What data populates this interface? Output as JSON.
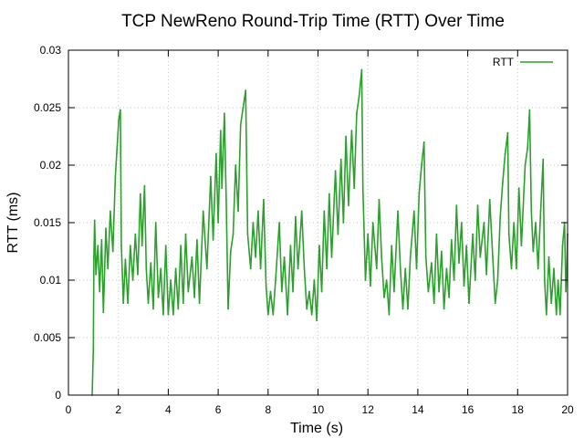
{
  "chart_data": {
    "type": "line",
    "title": "TCP NewReno Round-Trip Time (RTT) Over Time",
    "xlabel": "Time (s)",
    "ylabel": "RTT (ms)",
    "xlim": [
      0,
      20
    ],
    "ylim": [
      0,
      0.03
    ],
    "x_ticks": [
      "0",
      "2",
      "4",
      "6",
      "8",
      "10",
      "12",
      "14",
      "16",
      "18",
      "20"
    ],
    "y_ticks": [
      "0",
      "0.005",
      "0.01",
      "0.015",
      "0.02",
      "0.025",
      "0.03"
    ],
    "grid": true,
    "legend_position": "top-right",
    "series": [
      {
        "name": "RTT",
        "color": "#2ca02c",
        "points": [
          [
            0.95,
            0.0
          ],
          [
            1.0,
            0.004
          ],
          [
            1.02,
            0.012
          ],
          [
            1.05,
            0.0152
          ],
          [
            1.1,
            0.0105
          ],
          [
            1.18,
            0.013
          ],
          [
            1.25,
            0.009
          ],
          [
            1.33,
            0.0135
          ],
          [
            1.4,
            0.0072
          ],
          [
            1.5,
            0.0145
          ],
          [
            1.58,
            0.011
          ],
          [
            1.68,
            0.016
          ],
          [
            1.78,
            0.0125
          ],
          [
            1.88,
            0.019
          ],
          [
            1.95,
            0.0215
          ],
          [
            2.02,
            0.024
          ],
          [
            2.08,
            0.0248
          ],
          [
            2.12,
            0.013
          ],
          [
            2.2,
            0.008
          ],
          [
            2.28,
            0.0118
          ],
          [
            2.38,
            0.008
          ],
          [
            2.48,
            0.013
          ],
          [
            2.58,
            0.01
          ],
          [
            2.68,
            0.014
          ],
          [
            2.78,
            0.0105
          ],
          [
            2.88,
            0.0175
          ],
          [
            2.95,
            0.013
          ],
          [
            3.05,
            0.0182
          ],
          [
            3.12,
            0.011
          ],
          [
            3.2,
            0.008
          ],
          [
            3.3,
            0.0115
          ],
          [
            3.4,
            0.0075
          ],
          [
            3.5,
            0.015
          ],
          [
            3.6,
            0.0085
          ],
          [
            3.7,
            0.011
          ],
          [
            3.8,
            0.007
          ],
          [
            3.9,
            0.013
          ],
          [
            4.0,
            0.007
          ],
          [
            4.1,
            0.01
          ],
          [
            4.2,
            0.007
          ],
          [
            4.3,
            0.011
          ],
          [
            4.4,
            0.0075
          ],
          [
            4.5,
            0.013
          ],
          [
            4.6,
            0.008
          ],
          [
            4.7,
            0.014
          ],
          [
            4.8,
            0.009
          ],
          [
            4.95,
            0.012
          ],
          [
            5.05,
            0.0085
          ],
          [
            5.15,
            0.0135
          ],
          [
            5.25,
            0.008
          ],
          [
            5.4,
            0.016
          ],
          [
            5.55,
            0.011
          ],
          [
            5.7,
            0.019
          ],
          [
            5.8,
            0.0135
          ],
          [
            5.92,
            0.021
          ],
          [
            6.0,
            0.015
          ],
          [
            6.1,
            0.023
          ],
          [
            6.15,
            0.018
          ],
          [
            6.25,
            0.0245
          ],
          [
            6.32,
            0.017
          ],
          [
            6.4,
            0.0075
          ],
          [
            6.5,
            0.0125
          ],
          [
            6.6,
            0.014
          ],
          [
            6.7,
            0.02
          ],
          [
            6.8,
            0.016
          ],
          [
            6.9,
            0.0235
          ],
          [
            7.0,
            0.025
          ],
          [
            7.1,
            0.0265
          ],
          [
            7.18,
            0.014
          ],
          [
            7.3,
            0.011
          ],
          [
            7.4,
            0.015
          ],
          [
            7.5,
            0.012
          ],
          [
            7.6,
            0.016
          ],
          [
            7.7,
            0.011
          ],
          [
            7.82,
            0.017
          ],
          [
            7.92,
            0.0095
          ],
          [
            8.0,
            0.007
          ],
          [
            8.1,
            0.009
          ],
          [
            8.2,
            0.007
          ],
          [
            8.3,
            0.01
          ],
          [
            8.45,
            0.015
          ],
          [
            8.55,
            0.009
          ],
          [
            8.65,
            0.012
          ],
          [
            8.78,
            0.007
          ],
          [
            8.9,
            0.013
          ],
          [
            9.0,
            0.009
          ],
          [
            9.1,
            0.0155
          ],
          [
            9.2,
            0.011
          ],
          [
            9.35,
            0.016
          ],
          [
            9.45,
            0.011
          ],
          [
            9.55,
            0.0075
          ],
          [
            9.65,
            0.009
          ],
          [
            9.75,
            0.007
          ],
          [
            9.85,
            0.01
          ],
          [
            9.95,
            0.0065
          ],
          [
            10.05,
            0.013
          ],
          [
            10.15,
            0.009
          ],
          [
            10.25,
            0.016
          ],
          [
            10.35,
            0.011
          ],
          [
            10.45,
            0.0175
          ],
          [
            10.55,
            0.012
          ],
          [
            10.7,
            0.0195
          ],
          [
            10.8,
            0.014
          ],
          [
            10.92,
            0.0205
          ],
          [
            11.02,
            0.015
          ],
          [
            11.12,
            0.0225
          ],
          [
            11.22,
            0.0165
          ],
          [
            11.35,
            0.023
          ],
          [
            11.45,
            0.018
          ],
          [
            11.55,
            0.0245
          ],
          [
            11.65,
            0.026
          ],
          [
            11.75,
            0.0283
          ],
          [
            11.8,
            0.018
          ],
          [
            11.9,
            0.01
          ],
          [
            12.0,
            0.014
          ],
          [
            12.1,
            0.0095
          ],
          [
            12.2,
            0.015
          ],
          [
            12.35,
            0.011
          ],
          [
            12.45,
            0.017
          ],
          [
            12.55,
            0.012
          ],
          [
            12.65,
            0.0085
          ],
          [
            12.75,
            0.01
          ],
          [
            12.85,
            0.007
          ],
          [
            12.95,
            0.013
          ],
          [
            13.05,
            0.009
          ],
          [
            13.2,
            0.016
          ],
          [
            13.3,
            0.011
          ],
          [
            13.4,
            0.0075
          ],
          [
            13.5,
            0.011
          ],
          [
            13.6,
            0.0075
          ],
          [
            13.7,
            0.012
          ],
          [
            13.85,
            0.016
          ],
          [
            13.95,
            0.011
          ],
          [
            14.05,
            0.0175
          ],
          [
            14.15,
            0.02
          ],
          [
            14.25,
            0.022
          ],
          [
            14.32,
            0.012
          ],
          [
            14.42,
            0.009
          ],
          [
            14.55,
            0.0115
          ],
          [
            14.65,
            0.008
          ],
          [
            14.75,
            0.014
          ],
          [
            14.85,
            0.009
          ],
          [
            14.95,
            0.0125
          ],
          [
            15.05,
            0.0075
          ],
          [
            15.15,
            0.011
          ],
          [
            15.25,
            0.0085
          ],
          [
            15.35,
            0.0135
          ],
          [
            15.45,
            0.01
          ],
          [
            15.55,
            0.0165
          ],
          [
            15.65,
            0.0115
          ],
          [
            15.75,
            0.015
          ],
          [
            15.85,
            0.0095
          ],
          [
            15.95,
            0.013
          ],
          [
            16.05,
            0.008
          ],
          [
            16.2,
            0.014
          ],
          [
            16.3,
            0.01
          ],
          [
            16.4,
            0.0165
          ],
          [
            16.5,
            0.012
          ],
          [
            16.65,
            0.015
          ],
          [
            16.75,
            0.0105
          ],
          [
            16.88,
            0.017
          ],
          [
            17.0,
            0.012
          ],
          [
            17.1,
            0.008
          ],
          [
            17.2,
            0.01
          ],
          [
            17.3,
            0.0155
          ],
          [
            17.4,
            0.0185
          ],
          [
            17.5,
            0.021
          ],
          [
            17.6,
            0.0228
          ],
          [
            17.65,
            0.014
          ],
          [
            17.75,
            0.011
          ],
          [
            17.85,
            0.015
          ],
          [
            17.95,
            0.011
          ],
          [
            18.05,
            0.018
          ],
          [
            18.15,
            0.013
          ],
          [
            18.3,
            0.02
          ],
          [
            18.4,
            0.0215
          ],
          [
            18.48,
            0.0248
          ],
          [
            18.55,
            0.016
          ],
          [
            18.62,
            0.0125
          ],
          [
            18.72,
            0.015
          ],
          [
            18.82,
            0.011
          ],
          [
            18.92,
            0.016
          ],
          [
            19.02,
            0.0205
          ],
          [
            19.08,
            0.01
          ],
          [
            19.15,
            0.007
          ],
          [
            19.25,
            0.012
          ],
          [
            19.35,
            0.008
          ],
          [
            19.45,
            0.011
          ],
          [
            19.55,
            0.007
          ],
          [
            19.62,
            0.01
          ],
          [
            19.7,
            0.007
          ],
          [
            19.8,
            0.013
          ],
          [
            19.88,
            0.015
          ],
          [
            19.93,
            0.009
          ],
          [
            19.97,
            0.011
          ],
          [
            20.0,
            0.014
          ]
        ]
      }
    ]
  }
}
